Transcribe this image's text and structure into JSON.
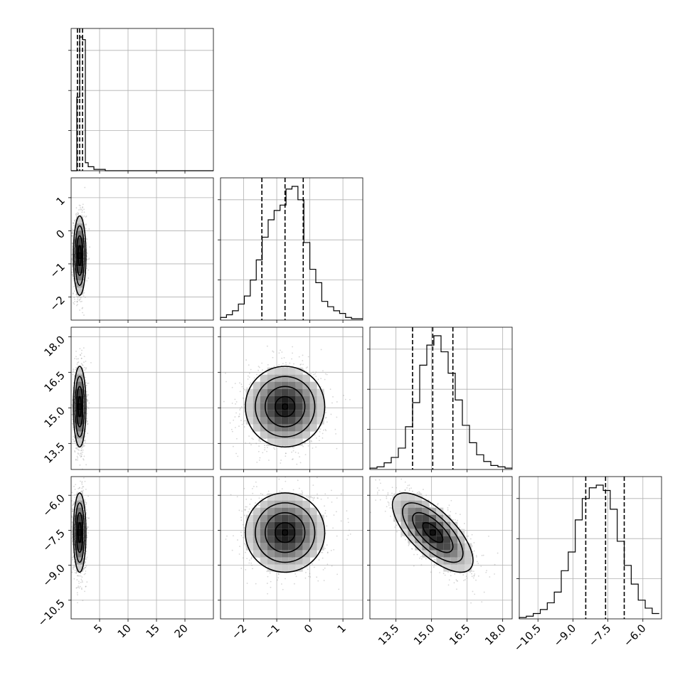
{
  "chart_data": {
    "type": "corner",
    "n_params": 4,
    "params": [
      {
        "range": [
          0,
          25
        ],
        "ticks": [
          5,
          10,
          15,
          20
        ],
        "tick_labels": [
          "5",
          "10",
          "15",
          "20"
        ],
        "show_x_labels": true
      },
      {
        "range": [
          -2.7,
          1.6
        ],
        "ticks": [
          -2,
          -1,
          0,
          1
        ],
        "tick_labels": [
          "−2",
          "−1",
          "0",
          "1"
        ],
        "show_x_labels": true
      },
      {
        "range": [
          12.4,
          18.4
        ],
        "ticks": [
          13.5,
          15.0,
          16.5,
          18.0
        ],
        "tick_labels": [
          "13.5",
          "15.0",
          "16.5",
          "18.0"
        ],
        "show_x_labels": true
      },
      {
        "range": [
          -11.3,
          -5.2
        ],
        "ticks": [
          -10.5,
          -9.0,
          -7.5,
          -6.0
        ],
        "tick_labels": [
          "−10.5",
          "−9.0",
          "−7.5",
          "−6.0"
        ],
        "show_x_labels": true
      }
    ],
    "y_tick_params": [
      1,
      2,
      3
    ],
    "quantiles": [
      [
        1.1,
        1.5,
        2.0
      ],
      [
        -1.45,
        -0.75,
        -0.2
      ],
      [
        14.2,
        15.05,
        15.9
      ],
      [
        -8.45,
        -7.6,
        -6.8
      ]
    ],
    "histograms": [
      {
        "edges": [
          0,
          0.5,
          1.0,
          1.5,
          2.0,
          2.5,
          3.0,
          4.0,
          6.0,
          25.0
        ],
        "counts": [
          0,
          0,
          0.55,
          1.0,
          0.98,
          0.06,
          0.03,
          0.01,
          0
        ]
      },
      {
        "edges": [
          -2.7,
          -2.52,
          -2.34,
          -2.16,
          -1.98,
          -1.8,
          -1.62,
          -1.44,
          -1.26,
          -1.08,
          -0.9,
          -0.72,
          -0.54,
          -0.36,
          -0.18,
          0.0,
          0.18,
          0.36,
          0.54,
          0.72,
          0.9,
          1.08,
          1.26,
          1.6
        ],
        "counts": [
          0.02,
          0.04,
          0.07,
          0.12,
          0.18,
          0.3,
          0.45,
          0.62,
          0.75,
          0.82,
          0.86,
          0.98,
          1.0,
          0.9,
          0.58,
          0.38,
          0.28,
          0.14,
          0.1,
          0.07,
          0.05,
          0.02,
          0.01
        ]
      },
      {
        "edges": [
          12.4,
          12.7,
          13.0,
          13.3,
          13.6,
          13.9,
          14.2,
          14.5,
          14.8,
          15.1,
          15.4,
          15.7,
          16.0,
          16.3,
          16.6,
          16.9,
          17.2,
          17.5,
          17.8,
          18.1,
          18.4
        ],
        "counts": [
          0.01,
          0.02,
          0.05,
          0.09,
          0.16,
          0.32,
          0.5,
          0.78,
          0.93,
          1.0,
          0.88,
          0.72,
          0.52,
          0.33,
          0.2,
          0.11,
          0.06,
          0.03,
          0.02,
          0.01
        ]
      },
      {
        "edges": [
          -11.3,
          -11.0,
          -10.7,
          -10.4,
          -10.1,
          -9.8,
          -9.5,
          -9.2,
          -8.9,
          -8.6,
          -8.3,
          -8.0,
          -7.7,
          -7.4,
          -7.1,
          -6.8,
          -6.5,
          -6.2,
          -5.9,
          -5.6,
          -5.3
        ],
        "counts": [
          0.01,
          0.02,
          0.04,
          0.07,
          0.12,
          0.2,
          0.36,
          0.5,
          0.74,
          0.9,
          0.98,
          1.0,
          0.96,
          0.82,
          0.58,
          0.4,
          0.26,
          0.14,
          0.08,
          0.04
        ]
      }
    ],
    "pairs": [
      {
        "x": 0,
        "y": 1,
        "center": [
          1.5,
          -0.75
        ],
        "sigma": [
          0.55,
          0.6
        ],
        "rho": 0.0
      },
      {
        "x": 0,
        "y": 2,
        "center": [
          1.5,
          15.05
        ],
        "sigma": [
          0.55,
          0.85
        ],
        "rho": 0.0
      },
      {
        "x": 1,
        "y": 2,
        "center": [
          -0.75,
          15.05
        ],
        "sigma": [
          0.6,
          0.85
        ],
        "rho": 0.0
      },
      {
        "x": 0,
        "y": 3,
        "center": [
          1.5,
          -7.6
        ],
        "sigma": [
          0.55,
          0.85
        ],
        "rho": 0.0
      },
      {
        "x": 1,
        "y": 3,
        "center": [
          -0.75,
          -7.6
        ],
        "sigma": [
          0.6,
          0.85
        ],
        "rho": 0.0
      },
      {
        "x": 2,
        "y": 3,
        "center": [
          15.05,
          -7.6
        ],
        "sigma": [
          0.85,
          0.85
        ],
        "rho": -0.7
      }
    ],
    "contour_levels_sigma": [
      0.5,
      1.0,
      1.5,
      2.0
    ]
  }
}
